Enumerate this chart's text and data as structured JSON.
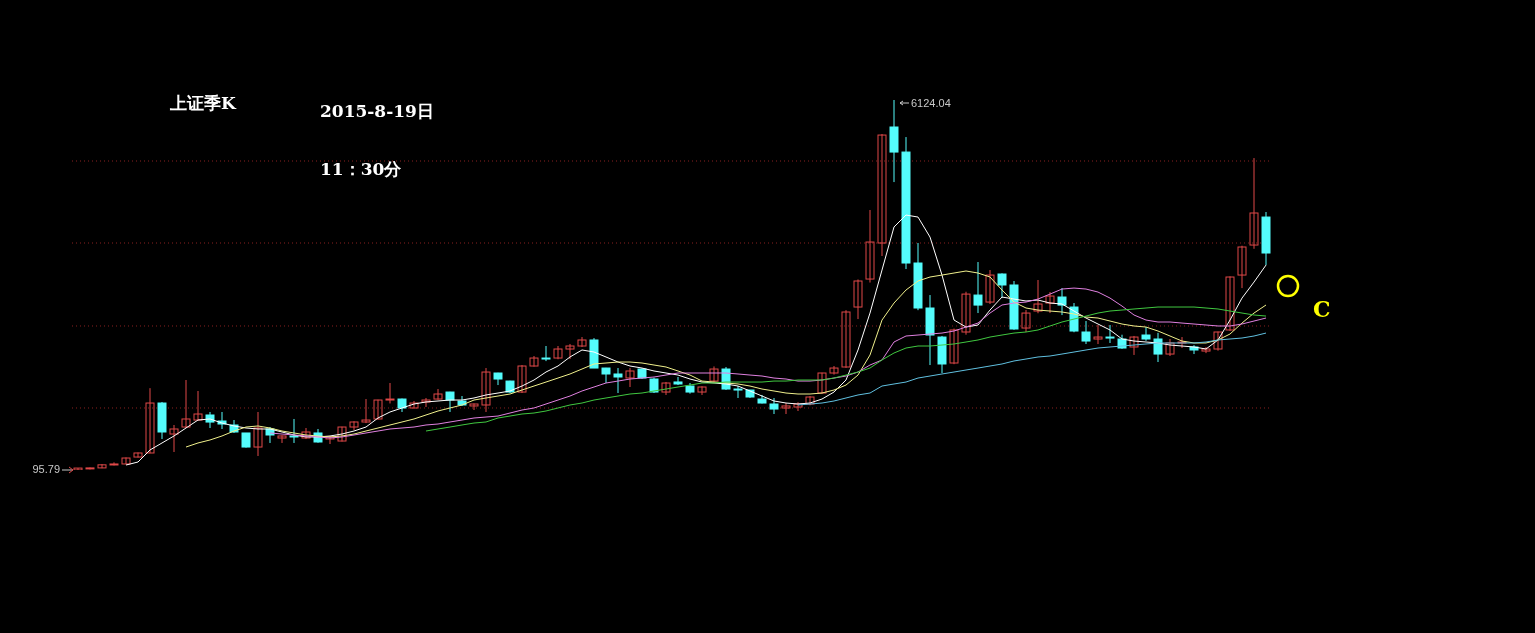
{
  "chart_data": {
    "type": "candlestick",
    "title": "上证季K",
    "subtitle": "2015-8-19日",
    "annotations": [
      "11：30分",
      "C",
      "6124.04",
      "95.79"
    ],
    "categories": [
      null,
      null,
      null,
      null,
      null,
      null,
      null,
      null,
      null,
      null,
      null,
      null,
      null,
      null,
      null,
      null,
      null,
      null,
      null,
      null,
      null,
      null,
      null,
      null,
      null,
      null,
      null,
      null,
      null,
      null,
      null,
      null,
      null,
      null,
      null,
      null,
      null,
      null,
      null,
      null,
      null,
      null,
      null,
      null,
      null,
      null,
      null,
      null,
      null,
      null,
      null,
      null,
      null,
      null,
      null,
      null,
      null,
      null,
      null,
      null,
      null,
      null,
      null,
      null,
      null,
      null,
      null,
      null,
      null,
      null,
      null,
      null,
      null,
      null,
      null,
      null,
      null,
      null,
      null,
      null,
      null,
      null,
      null,
      null,
      null,
      null,
      null,
      null,
      null,
      null,
      null,
      null,
      null,
      null,
      null,
      null,
      null,
      null,
      null,
      null
    ],
    "ohlc": [
      [
        96,
        128,
        95.79,
        127
      ],
      [
        127,
        136,
        105,
        130
      ],
      [
        130,
        190,
        125,
        180
      ],
      [
        180,
        220,
        170,
        194
      ],
      [
        194,
        300,
        190,
        291
      ],
      [
        307,
        380,
        300,
        373
      ],
      [
        373,
        1429,
        370,
        1187
      ],
      [
        1187,
        1204,
        601,
        715
      ],
      [
        682,
        829,
        389,
        764
      ],
      [
        796,
        1562,
        780,
        927
      ],
      [
        910,
        1383,
        900,
        1008
      ],
      [
        992,
        1041,
        780,
        877
      ],
      [
        894,
        1041,
        764,
        845
      ],
      [
        829,
        910,
        699,
        715
      ],
      [
        699,
        699,
        460,
        470
      ],
      [
        470,
        1041,
        324,
        780
      ],
      [
        764,
        796,
        536,
        666
      ],
      [
        617,
        660,
        536,
        650
      ],
      [
        650,
        927,
        536,
        634
      ],
      [
        617,
        780,
        600,
        715
      ],
      [
        699,
        764,
        540,
        552
      ],
      [
        601,
        650,
        519,
        634
      ],
      [
        568,
        800,
        560,
        796
      ],
      [
        796,
        890,
        747,
        878
      ],
      [
        878,
        1252,
        860,
        910
      ],
      [
        927,
        1240,
        920,
        1236
      ],
      [
        1236,
        1513,
        1180,
        1252
      ],
      [
        1252,
        1260,
        1041,
        1106
      ],
      [
        1106,
        1220,
        1100,
        1187
      ],
      [
        1204,
        1269,
        1122,
        1236
      ],
      [
        1252,
        1415,
        1240,
        1334
      ],
      [
        1366,
        1370,
        1041,
        1236
      ],
      [
        1220,
        1301,
        1140,
        1155
      ],
      [
        1139,
        1180,
        1073,
        1171
      ],
      [
        1155,
        1757,
        1041,
        1692
      ],
      [
        1676,
        1680,
        1480,
        1578
      ],
      [
        1545,
        1550,
        1350,
        1366
      ],
      [
        1366,
        1806,
        1350,
        1790
      ],
      [
        1790,
        1953,
        1780,
        1920
      ],
      [
        1920,
        2116,
        1870,
        1904
      ],
      [
        1920,
        2116,
        1900,
        2067
      ],
      [
        2067,
        2149,
        1904,
        2116
      ],
      [
        2116,
        2262,
        2100,
        2214
      ],
      [
        2214,
        2245,
        1757,
        1757
      ],
      [
        1757,
        1760,
        1513,
        1660
      ],
      [
        1660,
        1757,
        1350,
        1611
      ],
      [
        1595,
        1757,
        1448,
        1709
      ],
      [
        1741,
        1750,
        1580,
        1595
      ],
      [
        1578,
        1600,
        1350,
        1366
      ],
      [
        1366,
        1530,
        1318,
        1513
      ],
      [
        1530,
        1611,
        1480,
        1497
      ],
      [
        1464,
        1513,
        1340,
        1366
      ],
      [
        1366,
        1460,
        1318,
        1448
      ],
      [
        1545,
        1783,
        1530,
        1741
      ],
      [
        1741,
        1773,
        1400,
        1415
      ],
      [
        1415,
        1464,
        1269,
        1399
      ],
      [
        1399,
        1400,
        1270,
        1285
      ],
      [
        1252,
        1318,
        1180,
        1187
      ],
      [
        1171,
        1269,
        1008,
        1089
      ],
      [
        1106,
        1187,
        1008,
        1139
      ],
      [
        1122,
        1200,
        1057,
        1171
      ],
      [
        1171,
        1300,
        1150,
        1285
      ],
      [
        1350,
        1680,
        1340,
        1676
      ],
      [
        1676,
        1790,
        1650,
        1757
      ],
      [
        1774,
        2700,
        1760,
        2670
      ],
      [
        2751,
        3200,
        2555,
        3175
      ],
      [
        3207,
        4332,
        3150,
        3810
      ],
      [
        3794,
        5570,
        3582,
        5553
      ],
      [
        5684,
        6124.04,
        4787,
        5276
      ],
      [
        5276,
        5520,
        3370,
        3468
      ],
      [
        3468,
        3794,
        2700,
        2735
      ],
      [
        2735,
        2946,
        1806,
        2295
      ],
      [
        2262,
        2280,
        1676,
        1823
      ],
      [
        1839,
        2400,
        1820,
        2377
      ],
      [
        2344,
        3000,
        2300,
        2962
      ],
      [
        2946,
        3484,
        2653,
        2783
      ],
      [
        2832,
        3354,
        2800,
        3272
      ],
      [
        3289,
        3300,
        2897,
        3110
      ],
      [
        3110,
        3175,
        2380,
        2393
      ],
      [
        2409,
        2702,
        2344,
        2653
      ],
      [
        2686,
        3191,
        2650,
        2800
      ],
      [
        2816,
        2995,
        2653,
        2930
      ],
      [
        2914,
        3060,
        2620,
        2783
      ],
      [
        2751,
        2816,
        2340,
        2360
      ],
      [
        2344,
        2523,
        2148,
        2197
      ],
      [
        2230,
        2458,
        2148,
        2262
      ],
      [
        2262,
        2458,
        2165,
        2246
      ],
      [
        2230,
        2300,
        2070,
        2083
      ],
      [
        2100,
        2280,
        1970,
        2262
      ],
      [
        2295,
        2425,
        2200,
        2230
      ],
      [
        2230,
        2330,
        1855,
        1985
      ],
      [
        1985,
        2230,
        1953,
        2165
      ],
      [
        2165,
        2262,
        2083,
        2181
      ],
      [
        2100,
        2130,
        1985,
        2051
      ],
      [
        2034,
        2100,
        2000,
        2067
      ],
      [
        2067,
        2350,
        2040,
        2344
      ],
      [
        2377,
        3250,
        2360,
        3240
      ],
      [
        3272,
        3750,
        3060,
        3729
      ],
      [
        3761,
        5178,
        3700,
        4283
      ],
      [
        4217,
        4299,
        3435,
        3631
      ]
    ],
    "colors": [
      "#e04848",
      "#e04848",
      "#e04848",
      "#e04848",
      "#e04848",
      "#e04848",
      "#e04848",
      "#54fcfc",
      "#e04848",
      "#e04848",
      "#e04848",
      "#54fcfc",
      "#54fcfc",
      "#54fcfc",
      "#54fcfc",
      "#e04848",
      "#54fcfc",
      "#e04848",
      "#54fcfc",
      "#e04848",
      "#54fcfc",
      "#e04848",
      "#e04848",
      "#e04848",
      "#e04848",
      "#e04848",
      "#e04848",
      "#54fcfc",
      "#e04848",
      "#e04848",
      "#e04848",
      "#54fcfc",
      "#54fcfc",
      "#e04848",
      "#e04848",
      "#54fcfc",
      "#54fcfc",
      "#e04848",
      "#e04848",
      "#54fcfc",
      "#e04848",
      "#e04848",
      "#e04848",
      "#54fcfc",
      "#54fcfc",
      "#54fcfc",
      "#e04848",
      "#54fcfc",
      "#54fcfc",
      "#e04848",
      "#54fcfc",
      "#54fcfc",
      "#e04848",
      "#e04848",
      "#54fcfc",
      "#54fcfc",
      "#54fcfc",
      "#54fcfc",
      "#54fcfc",
      "#e04848",
      "#e04848",
      "#e04848",
      "#e04848",
      "#e04848",
      "#e04848",
      "#e04848",
      "#e04848",
      "#e04848",
      "#54fcfc",
      "#54fcfc",
      "#54fcfc",
      "#54fcfc",
      "#54fcfc",
      "#e04848",
      "#e04848",
      "#54fcfc",
      "#e04848",
      "#54fcfc",
      "#54fcfc",
      "#e04848",
      "#e04848",
      "#e04848",
      "#54fcfc",
      "#54fcfc",
      "#54fcfc",
      "#e04848",
      "#54fcfc",
      "#54fcfc",
      "#e04848",
      "#54fcfc",
      "#54fcfc",
      "#e04848",
      "#e04848",
      "#54fcfc",
      "#e04848",
      "#e04848",
      "#e04848",
      "#e04848",
      "#e04848",
      "#54fcfc"
    ],
    "series": [
      {
        "type": "line",
        "color": "#ffffff",
        "values": [
          null,
          null,
          null,
          null,
          177,
          226,
          422,
          536,
          650,
          780,
          910,
          927,
          861,
          813,
          780,
          764,
          764,
          715,
          666,
          634,
          634,
          650,
          682,
          731,
          796,
          943,
          1041,
          1106,
          1171,
          1204,
          1220,
          1236,
          1236,
          1269,
          1318,
          1350,
          1383,
          1464,
          1562,
          1692,
          1790,
          1937,
          2051,
          2018,
          1937,
          1855,
          1790,
          1757,
          1709,
          1676,
          1643,
          1578,
          1529,
          1513,
          1497,
          1464,
          1383,
          1301,
          1220,
          1187,
          1171,
          1187,
          1252,
          1366,
          1562,
          2051,
          2653,
          3354,
          4055,
          4250,
          4217,
          3891,
          3272,
          2539,
          2425,
          2458,
          2702,
          2914,
          2881,
          2849,
          2865,
          2816,
          2800,
          2686,
          2572,
          2474,
          2377,
          2230,
          2197,
          2181,
          2165,
          2132,
          2116,
          2100,
          2067,
          2214,
          2539,
          2897,
          3158,
          3435
        ]
      },
      {
        "type": "line",
        "color": "#f0f08c",
        "values": [
          null,
          null,
          null,
          null,
          null,
          null,
          null,
          null,
          null,
          470,
          536,
          585,
          650,
          731,
          796,
          813,
          780,
          731,
          699,
          666,
          650,
          634,
          650,
          682,
          731,
          780,
          829,
          878,
          927,
          992,
          1057,
          1106,
          1155,
          1236,
          1269,
          1301,
          1334,
          1399,
          1464,
          1529,
          1594,
          1660,
          1741,
          1823,
          1839,
          1855,
          1855,
          1839,
          1806,
          1774,
          1709,
          1643,
          1545,
          1529,
          1513,
          1497,
          1464,
          1415,
          1383,
          1350,
          1334,
          1334,
          1350,
          1399,
          1480,
          1643,
          1969,
          2539,
          2816,
          3028,
          3175,
          3240,
          3272,
          3305,
          3338,
          3305,
          3240,
          3028,
          2832,
          2735,
          2702,
          2686,
          2670,
          2637,
          2588,
          2572,
          2523,
          2474,
          2442,
          2425,
          2360,
          2279,
          2197,
          2165,
          2165,
          2214,
          2311,
          2490,
          2653,
          2784
        ]
      },
      {
        "type": "line",
        "color": "#e080e0",
        "values": [
          null,
          null,
          null,
          null,
          null,
          null,
          null,
          null,
          null,
          null,
          null,
          null,
          null,
          null,
          null,
          null,
          699,
          682,
          666,
          650,
          634,
          617,
          634,
          666,
          699,
          731,
          764,
          780,
          796,
          829,
          845,
          878,
          910,
          943,
          959,
          975,
          1024,
          1073,
          1106,
          1171,
          1236,
          1301,
          1383,
          1448,
          1513,
          1545,
          1578,
          1594,
          1611,
          1643,
          1676,
          1676,
          1676,
          1676,
          1676,
          1660,
          1643,
          1627,
          1594,
          1578,
          1545,
          1545,
          1562,
          1594,
          1627,
          1692,
          1806,
          1888,
          2181,
          2279,
          2295,
          2311,
          2327,
          2360,
          2425,
          2490,
          2653,
          2784,
          2816,
          2832,
          2881,
          2962,
          3044,
          3060,
          3044,
          2995,
          2897,
          2767,
          2621,
          2539,
          2507,
          2507,
          2490,
          2474,
          2458,
          2442,
          2442,
          2474,
          2523,
          2572
        ]
      },
      {
        "type": "line",
        "color": "#40c840",
        "values": [
          null,
          null,
          null,
          null,
          null,
          null,
          null,
          null,
          null,
          null,
          null,
          null,
          null,
          null,
          null,
          null,
          null,
          null,
          null,
          null,
          null,
          null,
          null,
          null,
          null,
          null,
          null,
          null,
          null,
          731,
          764,
          796,
          829,
          861,
          878,
          943,
          975,
          1008,
          1024,
          1057,
          1106,
          1155,
          1187,
          1236,
          1269,
          1301,
          1334,
          1350,
          1383,
          1415,
          1448,
          1480,
          1513,
          1513,
          1529,
          1529,
          1529,
          1529,
          1545,
          1545,
          1562,
          1562,
          1562,
          1594,
          1643,
          1692,
          1757,
          1888,
          2002,
          2083,
          2116,
          2116,
          2132,
          2149,
          2181,
          2214,
          2262,
          2295,
          2327,
          2344,
          2377,
          2442,
          2507,
          2555,
          2604,
          2653,
          2686,
          2702,
          2719,
          2735,
          2751,
          2751,
          2751,
          2751,
          2735,
          2719,
          2686,
          2653,
          2621,
          2604
        ]
      },
      {
        "type": "line",
        "color": "#60c0e0",
        "values": [
          null,
          null,
          null,
          null,
          null,
          null,
          null,
          null,
          null,
          null,
          null,
          null,
          null,
          null,
          null,
          null,
          null,
          null,
          null,
          null,
          null,
          null,
          null,
          null,
          null,
          null,
          null,
          null,
          null,
          null,
          null,
          null,
          null,
          null,
          null,
          null,
          null,
          null,
          null,
          null,
          null,
          null,
          null,
          null,
          null,
          null,
          null,
          null,
          null,
          null,
          null,
          null,
          null,
          null,
          null,
          null,
          null,
          null,
          null,
          null,
          1155,
          1171,
          1187,
          1220,
          1269,
          1318,
          1350,
          1464,
          1497,
          1529,
          1594,
          1627,
          1660,
          1692,
          1725,
          1757,
          1790,
          1823,
          1872,
          1904,
          1937,
          1953,
          1985,
          2018,
          2051,
          2083,
          2100,
          2116,
          2132,
          2149,
          2165,
          2165,
          2165,
          2165,
          2181,
          2214,
          2230,
          2246,
          2279,
          2327
        ]
      }
    ],
    "ref_lines": [
      {
        "axis": "y",
        "value": 5130,
        "color": "#8a2020",
        "line_style": "dotted"
      },
      {
        "axis": "y",
        "value": 3794,
        "color": "#8a2020",
        "line_style": "dotted"
      },
      {
        "axis": "y",
        "value": 2442,
        "color": "#8a2020",
        "line_style": "dotted"
      },
      {
        "axis": "y",
        "value": 1106,
        "color": "#8a2020",
        "line_style": "dotted"
      }
    ]
  }
}
